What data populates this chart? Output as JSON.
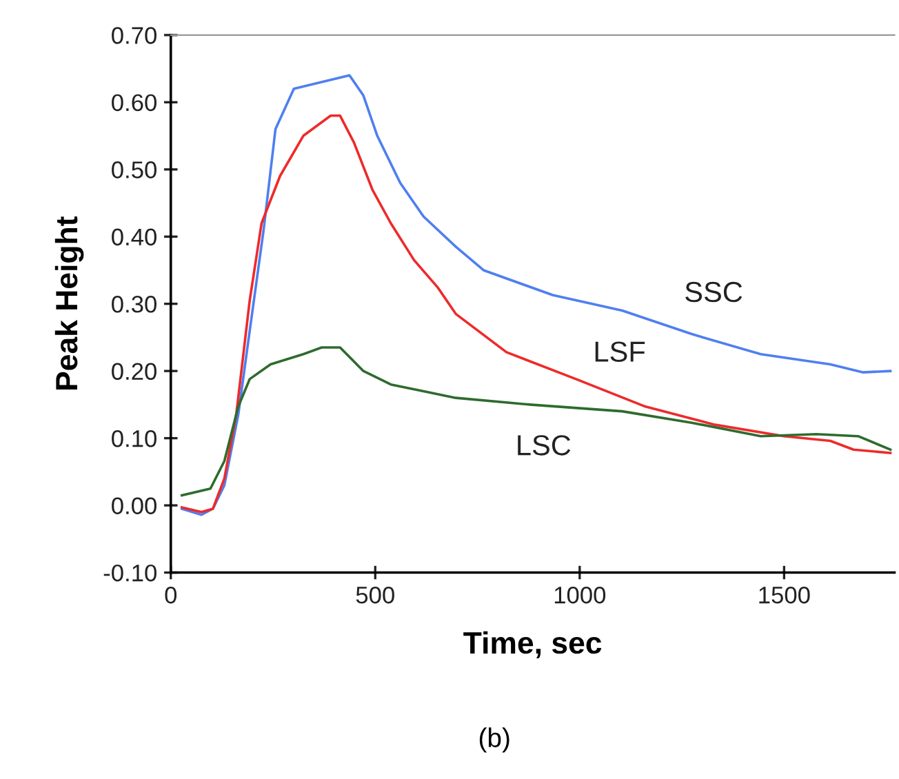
{
  "chart_data": {
    "type": "line",
    "xlabel": "Time, sec",
    "ylabel": "Peak Height",
    "xlim": [
      0,
      1770
    ],
    "xticks": [
      0,
      500,
      1000,
      1500
    ],
    "ylim": [
      -0.1,
      0.7
    ],
    "yticks": [
      {
        "value": -0.1,
        "label": "-0.10"
      },
      {
        "value": 0,
        "label": "0.00"
      },
      {
        "value": 0.1,
        "label": "0.10"
      },
      {
        "value": 0.2,
        "label": "0.20"
      },
      {
        "value": 0.3,
        "label": "0.30"
      },
      {
        "value": 0.4,
        "label": "0.40"
      },
      {
        "value": 0.5,
        "label": "0.50"
      },
      {
        "value": 0.6,
        "label": "0.60"
      },
      {
        "value": 0.7,
        "label": "0.70"
      }
    ],
    "grid": false,
    "marker": "none",
    "line_style": "solid",
    "annotations": [
      "(b)"
    ],
    "series": [
      {
        "name": "SSC",
        "color": "#4f7ff0",
        "x": [
          27,
          75,
          103,
          131,
          165,
          193,
          227,
          256,
          301,
          369,
          437,
          471,
          505,
          561,
          618,
          697,
          765,
          934,
          1104,
          1274,
          1443,
          1613,
          1692,
          1760
        ],
        "values": [
          -0.005,
          -0.014,
          -0.005,
          0.03,
          0.135,
          0.26,
          0.41,
          0.56,
          0.62,
          0.63,
          0.64,
          0.61,
          0.55,
          0.48,
          0.43,
          0.385,
          0.35,
          0.313,
          0.29,
          0.255,
          0.225,
          0.21,
          0.198,
          0.2
        ]
      },
      {
        "name": "LSF",
        "color": "#ee2a2a",
        "x": [
          27,
          75,
          103,
          131,
          160,
          193,
          222,
          267,
          324,
          391,
          414,
          448,
          493,
          538,
          595,
          652,
          697,
          821,
          991,
          1161,
          1331,
          1500,
          1613,
          1670,
          1760
        ],
        "values": [
          -0.003,
          -0.01,
          -0.005,
          0.04,
          0.135,
          0.305,
          0.42,
          0.49,
          0.55,
          0.58,
          0.58,
          0.54,
          0.47,
          0.42,
          0.365,
          0.325,
          0.285,
          0.228,
          0.188,
          0.147,
          0.12,
          0.103,
          0.096,
          0.083,
          0.078
        ]
      },
      {
        "name": "LSC",
        "color": "#2e6b2e",
        "x": [
          27,
          97,
          131,
          165,
          193,
          244,
          324,
          369,
          414,
          471,
          538,
          618,
          697,
          878,
          1104,
          1274,
          1443,
          1579,
          1681,
          1760
        ],
        "values": [
          0.015,
          0.025,
          0.066,
          0.147,
          0.188,
          0.21,
          0.225,
          0.235,
          0.235,
          0.2,
          0.18,
          0.17,
          0.16,
          0.15,
          0.14,
          0.123,
          0.103,
          0.106,
          0.103,
          0.083
        ]
      }
    ]
  }
}
